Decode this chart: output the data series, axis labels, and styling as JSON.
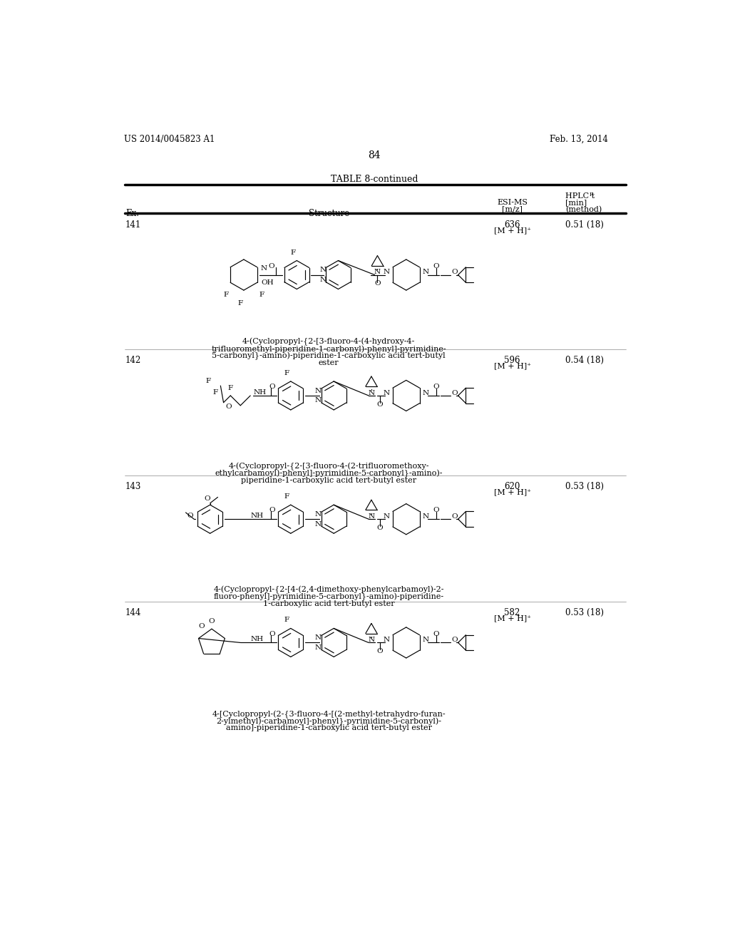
{
  "page_number": "84",
  "patent_number": "US 2014/0045823 A1",
  "patent_date": "Feb. 13, 2014",
  "table_title": "TABLE 8-continued",
  "bg_color": "#ffffff",
  "rows": [
    {
      "ex": "141",
      "esi_ms_top": "636",
      "esi_ms_bot": "[M + H]⁺",
      "hplc": "0.51 (18)",
      "name_lines": [
        "4-(Cyclopropyl-{2-[3-fluoro-4-(4-hydroxy-4-",
        "trifluoromethyl-piperidine-1-carbonyl)-phenyl]-pyrimidine-",
        "5-carbonyl}-amino)-piperidine-1-carboxylic acid tert-butyl",
        "ester"
      ]
    },
    {
      "ex": "142",
      "esi_ms_top": "596",
      "esi_ms_bot": "[M + H]⁺",
      "hplc": "0.54 (18)",
      "name_lines": [
        "4-(Cyclopropyl-{2-[3-fluoro-4-(2-trifluoromethoxy-",
        "ethylcarbamoyl)-phenyl]-pyrimidine-5-carbonyl}-amino)-",
        "piperidine-1-carboxylic acid tert-butyl ester"
      ]
    },
    {
      "ex": "143",
      "esi_ms_top": "620",
      "esi_ms_bot": "[M + H]⁺",
      "hplc": "0.53 (18)",
      "name_lines": [
        "4-(Cyclopropyl-{2-[4-(2,4-dimethoxy-phenylcarbamoyl)-2-",
        "fluoro-phenyl]-pyrimidine-5-carbonyl}-amino)-piperidine-",
        "1-carboxylic acid tert-butyl ester"
      ]
    },
    {
      "ex": "144",
      "esi_ms_top": "582",
      "esi_ms_bot": "[M + H]⁺",
      "hplc": "0.53 (18)",
      "name_lines": [
        "4-[Cyclopropyl-(2-{3-fluoro-4-[(2-methyl-tetrahydro-furan-",
        "2-ylmethyl)-carbamoyl]-phenyl}-pyrimidine-5-carbonyl)-",
        "amino]-piperidine-1-carboxylic acid tert-butyl ester"
      ]
    }
  ]
}
